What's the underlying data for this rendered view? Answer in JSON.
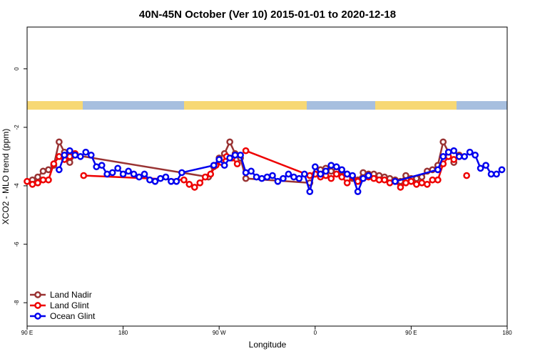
{
  "chart_data": {
    "type": "line",
    "title": "40N-45N October (Ver 10)   2015-01-01 to 2020-12-18",
    "x_label": "Longitude",
    "y_label": "XCO2 - MLO trend (ppm)",
    "xlim": [
      90,
      540
    ],
    "ylim": [
      -8.8,
      1.43
    ],
    "xticks": [
      {
        "value": 90,
        "label": "90 E"
      },
      180,
      {
        "value": 270,
        "label": "90 W"
      },
      {
        "value": 360,
        "label": "0"
      },
      {
        "value": 450,
        "label": "90 E"
      },
      {
        "value": 540,
        "label": "180"
      }
    ],
    "yticks": [
      0,
      -2,
      -4,
      -6,
      -8
    ],
    "legend": "bottomleft",
    "series": [
      {
        "name": "Land Nadir",
        "color": "#993333",
        "x": [
          95,
          100,
          105,
          110,
          115,
          120,
          125,
          130,
          135,
          260,
          265,
          270,
          275,
          280,
          285,
          290,
          295,
          355,
          360,
          365,
          370,
          375,
          380,
          385,
          390,
          395,
          400,
          405,
          410,
          415,
          420,
          425,
          430,
          435,
          440,
          445,
          450,
          455,
          460,
          465,
          470,
          475,
          480,
          485,
          490,
          495
        ],
        "values": [
          -3.8,
          -3.7,
          -3.5,
          -3.45,
          -3.3,
          -2.5,
          -2.85,
          -3.2,
          -2.95,
          -3.7,
          -3.35,
          -3.05,
          -2.9,
          -2.5,
          -2.9,
          -3.05,
          -3.75,
          -3.9,
          -3.6,
          -3.45,
          -3.4,
          -3.5,
          -3.5,
          -3.5,
          -3.6,
          -3.75,
          -3.8,
          -3.55,
          -3.6,
          -3.6,
          -3.65,
          -3.7,
          -3.75,
          -3.8,
          -3.85,
          -3.65,
          -3.75,
          -3.75,
          -3.7,
          -3.5,
          -3.45,
          -3.3,
          -2.5,
          -2.85,
          -3.2,
          -2.95
        ]
      },
      {
        "name": "Land Glint",
        "color": "#ee0000",
        "x": [
          90,
          95,
          100,
          105,
          110,
          115,
          120,
          125,
          130,
          135,
          140,
          143,
          237,
          242,
          247,
          252,
          257,
          262,
          267,
          272,
          277,
          282,
          287,
          291,
          295,
          355,
          360,
          365,
          370,
          375,
          380,
          385,
          390,
          395,
          400,
          405,
          410,
          415,
          420,
          425,
          430,
          435,
          440,
          445,
          450,
          455,
          460,
          465,
          470,
          475,
          480,
          485,
          490,
          495,
          499,
          502
        ],
        "values": [
          -3.85,
          -3.95,
          -3.9,
          -3.8,
          -3.8,
          -3.25,
          -3.0,
          -3.1,
          -3.0,
          -2.9,
          null,
          -3.65,
          -3.8,
          -3.95,
          -4.05,
          -3.9,
          -3.7,
          -3.6,
          -3.3,
          -3.2,
          -3.0,
          -3.05,
          -3.25,
          null,
          -2.8,
          -3.65,
          -3.6,
          -3.7,
          -3.65,
          -3.75,
          -3.6,
          -3.7,
          -3.9,
          -3.7,
          -3.85,
          -3.75,
          -3.7,
          -3.75,
          -3.8,
          -3.8,
          -3.9,
          -3.85,
          -4.05,
          -3.9,
          -3.85,
          -3.95,
          -3.9,
          -3.95,
          -3.8,
          -3.8,
          -3.25,
          -3.0,
          -3.1,
          -3.0,
          null,
          -3.65
        ]
      },
      {
        "name": "Ocean Glint",
        "color": "#0000ee",
        "x": [
          120,
          125,
          130,
          135,
          140,
          145,
          150,
          155,
          160,
          165,
          170,
          175,
          180,
          185,
          190,
          195,
          200,
          205,
          210,
          215,
          220,
          225,
          230,
          235,
          265,
          270,
          275,
          280,
          285,
          290,
          295,
          300,
          305,
          310,
          315,
          320,
          325,
          330,
          335,
          340,
          345,
          350,
          355,
          360,
          365,
          370,
          375,
          380,
          385,
          390,
          395,
          400,
          405,
          410,
          415,
          425,
          435,
          475,
          480,
          485,
          490,
          495,
          500,
          505,
          510,
          515,
          520,
          525,
          530,
          535
        ],
        "values": [
          -3.45,
          -2.95,
          -2.8,
          -2.95,
          -3.0,
          -2.85,
          -2.95,
          -3.35,
          -3.3,
          -3.6,
          -3.55,
          -3.4,
          -3.6,
          -3.5,
          -3.6,
          -3.7,
          -3.6,
          -3.8,
          -3.85,
          -3.75,
          -3.7,
          -3.85,
          -3.85,
          -3.55,
          -3.3,
          -3.1,
          -3.3,
          -3.05,
          -2.95,
          -2.95,
          -3.55,
          -3.5,
          -3.7,
          -3.75,
          -3.7,
          -3.65,
          -3.85,
          -3.75,
          -3.6,
          -3.7,
          -3.75,
          -3.6,
          -4.2,
          -3.35,
          -3.6,
          -3.5,
          -3.3,
          -3.35,
          -3.45,
          -3.6,
          -3.65,
          -4.2,
          -3.75,
          -3.65,
          null,
          null,
          -3.85,
          -3.45,
          -3.0,
          -2.85,
          -2.8,
          -3.0,
          -3.0,
          -2.85,
          -2.95,
          -3.4,
          -3.3,
          -3.6,
          -3.6,
          -3.45
        ]
      }
    ]
  }
}
